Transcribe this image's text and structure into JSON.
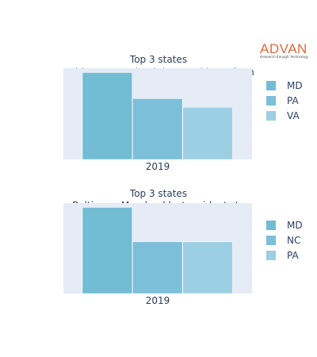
{
  "logo": {
    "brand": "ADVAN",
    "tagline": "Research through Technology"
  },
  "chart_data": [
    {
      "type": "bar",
      "title": "Top 3 states",
      "subtitle": "Baltimore Maryland drew residents from",
      "categories": [
        "2019"
      ],
      "series": [
        {
          "name": "MD",
          "values": [
            10
          ],
          "color": "#72bcd4"
        },
        {
          "name": "PA",
          "values": [
            7
          ],
          "color": "#7bbfd8"
        },
        {
          "name": "VA",
          "values": [
            6
          ],
          "color": "#9dcfe4"
        }
      ],
      "ylim": [
        0,
        10.5
      ],
      "grid": false,
      "legend": "right",
      "background": "#e5ecf6"
    },
    {
      "type": "bar",
      "title": "Top 3 states",
      "subtitle": "Baltimore Maryland lost residents to",
      "categories": [
        "2019"
      ],
      "series": [
        {
          "name": "MD",
          "values": [
            10
          ],
          "color": "#72bcd4"
        },
        {
          "name": "NC",
          "values": [
            6
          ],
          "color": "#7bbfd8"
        },
        {
          "name": "PA",
          "values": [
            6
          ],
          "color": "#9dcfe4"
        }
      ],
      "ylim": [
        0,
        10.5
      ],
      "grid": false,
      "legend": "right",
      "background": "#e5ecf6"
    }
  ]
}
